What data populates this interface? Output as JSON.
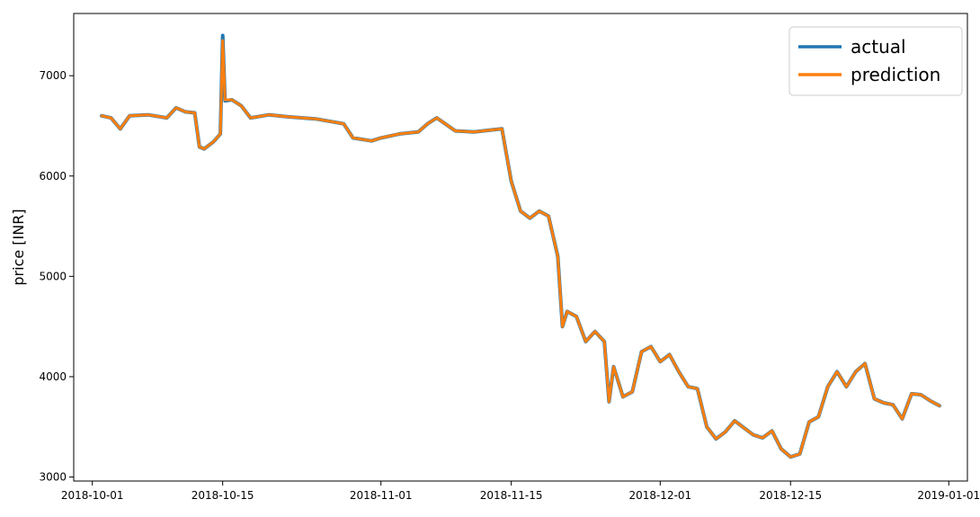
{
  "chart_data": {
    "type": "line",
    "title": "",
    "xlabel": "",
    "ylabel": "price [INR]",
    "xlim": [
      "2018-09-29",
      "2019-01-03"
    ],
    "ylim": [
      2960,
      7620
    ],
    "x_ticks": [
      "2018-10-01",
      "2018-10-15",
      "2018-11-01",
      "2018-11-15",
      "2018-12-01",
      "2018-12-15",
      "2019-01-01"
    ],
    "y_ticks": [
      3000,
      4000,
      5000,
      6000,
      7000
    ],
    "grid": false,
    "legend_position": "top-right",
    "series": [
      {
        "name": "actual",
        "color": "#1f77b4",
        "points": [
          [
            "2018-10-02",
            6600
          ],
          [
            "2018-10-03",
            6580
          ],
          [
            "2018-10-04",
            6470
          ],
          [
            "2018-10-05",
            6600
          ],
          [
            "2018-10-07",
            6610
          ],
          [
            "2018-10-09",
            6580
          ],
          [
            "2018-10-10",
            6680
          ],
          [
            "2018-10-11",
            6640
          ],
          [
            "2018-10-12",
            6630
          ],
          [
            "2018-10-12 12:00",
            6290
          ],
          [
            "2018-10-13",
            6270
          ],
          [
            "2018-10-14",
            6340
          ],
          [
            "2018-10-14 18:00",
            6420
          ],
          [
            "2018-10-15",
            7400
          ],
          [
            "2018-10-15 06:00",
            6750
          ],
          [
            "2018-10-16",
            6760
          ],
          [
            "2018-10-17",
            6700
          ],
          [
            "2018-10-18",
            6580
          ],
          [
            "2018-10-20",
            6610
          ],
          [
            "2018-10-22",
            6590
          ],
          [
            "2018-10-25",
            6570
          ],
          [
            "2018-10-28",
            6520
          ],
          [
            "2018-10-29",
            6380
          ],
          [
            "2018-10-31",
            6350
          ],
          [
            "2018-11-01",
            6380
          ],
          [
            "2018-11-03",
            6420
          ],
          [
            "2018-11-05",
            6440
          ],
          [
            "2018-11-06",
            6520
          ],
          [
            "2018-11-07",
            6580
          ],
          [
            "2018-11-09",
            6450
          ],
          [
            "2018-11-11",
            6440
          ],
          [
            "2018-11-13",
            6460
          ],
          [
            "2018-11-14",
            6470
          ],
          [
            "2018-11-15",
            5950
          ],
          [
            "2018-11-16",
            5650
          ],
          [
            "2018-11-17",
            5580
          ],
          [
            "2018-11-18",
            5650
          ],
          [
            "2018-11-19",
            5600
          ],
          [
            "2018-11-20",
            5200
          ],
          [
            "2018-11-20 12:00",
            4500
          ],
          [
            "2018-11-21",
            4650
          ],
          [
            "2018-11-22",
            4600
          ],
          [
            "2018-11-23",
            4350
          ],
          [
            "2018-11-24",
            4450
          ],
          [
            "2018-11-25",
            4350
          ],
          [
            "2018-11-25 12:00",
            3750
          ],
          [
            "2018-11-26",
            4100
          ],
          [
            "2018-11-27",
            3800
          ],
          [
            "2018-11-28",
            3850
          ],
          [
            "2018-11-29",
            4250
          ],
          [
            "2018-11-30",
            4300
          ],
          [
            "2018-12-01",
            4150
          ],
          [
            "2018-12-02",
            4220
          ],
          [
            "2018-12-03",
            4050
          ],
          [
            "2018-12-04",
            3900
          ],
          [
            "2018-12-05",
            3880
          ],
          [
            "2018-12-06",
            3500
          ],
          [
            "2018-12-07",
            3380
          ],
          [
            "2018-12-08",
            3450
          ],
          [
            "2018-12-09",
            3560
          ],
          [
            "2018-12-10",
            3490
          ],
          [
            "2018-12-11",
            3420
          ],
          [
            "2018-12-12",
            3390
          ],
          [
            "2018-12-13",
            3460
          ],
          [
            "2018-12-14",
            3280
          ],
          [
            "2018-12-15",
            3200
          ],
          [
            "2018-12-16",
            3230
          ],
          [
            "2018-12-17",
            3550
          ],
          [
            "2018-12-18",
            3600
          ],
          [
            "2018-12-19",
            3900
          ],
          [
            "2018-12-20",
            4050
          ],
          [
            "2018-12-21",
            3900
          ],
          [
            "2018-12-22",
            4050
          ],
          [
            "2018-12-23",
            4130
          ],
          [
            "2018-12-24",
            3780
          ],
          [
            "2018-12-25",
            3740
          ],
          [
            "2018-12-26",
            3720
          ],
          [
            "2018-12-27",
            3580
          ],
          [
            "2018-12-28",
            3830
          ],
          [
            "2018-12-29",
            3820
          ],
          [
            "2018-12-30",
            3760
          ],
          [
            "2018-12-31",
            3710
          ]
        ]
      },
      {
        "name": "prediction",
        "color": "#ff7f0e",
        "points": [
          [
            "2018-10-02",
            6600
          ],
          [
            "2018-10-03",
            6580
          ],
          [
            "2018-10-04",
            6470
          ],
          [
            "2018-10-05",
            6600
          ],
          [
            "2018-10-07",
            6610
          ],
          [
            "2018-10-09",
            6580
          ],
          [
            "2018-10-10",
            6680
          ],
          [
            "2018-10-11",
            6640
          ],
          [
            "2018-10-12",
            6630
          ],
          [
            "2018-10-12 12:00",
            6290
          ],
          [
            "2018-10-13",
            6270
          ],
          [
            "2018-10-14",
            6340
          ],
          [
            "2018-10-14 18:00",
            6420
          ],
          [
            "2018-10-15",
            7350
          ],
          [
            "2018-10-15 06:00",
            6760
          ],
          [
            "2018-10-16",
            6760
          ],
          [
            "2018-10-17",
            6700
          ],
          [
            "2018-10-18",
            6580
          ],
          [
            "2018-10-20",
            6610
          ],
          [
            "2018-10-22",
            6590
          ],
          [
            "2018-10-25",
            6570
          ],
          [
            "2018-10-28",
            6520
          ],
          [
            "2018-10-29",
            6380
          ],
          [
            "2018-10-31",
            6350
          ],
          [
            "2018-11-01",
            6380
          ],
          [
            "2018-11-03",
            6420
          ],
          [
            "2018-11-05",
            6440
          ],
          [
            "2018-11-06",
            6520
          ],
          [
            "2018-11-07",
            6580
          ],
          [
            "2018-11-09",
            6450
          ],
          [
            "2018-11-11",
            6440
          ],
          [
            "2018-11-13",
            6460
          ],
          [
            "2018-11-14",
            6470
          ],
          [
            "2018-11-15",
            5950
          ],
          [
            "2018-11-16",
            5650
          ],
          [
            "2018-11-17",
            5580
          ],
          [
            "2018-11-18",
            5650
          ],
          [
            "2018-11-19",
            5600
          ],
          [
            "2018-11-20",
            5200
          ],
          [
            "2018-11-20 12:00",
            4500
          ],
          [
            "2018-11-21",
            4650
          ],
          [
            "2018-11-22",
            4600
          ],
          [
            "2018-11-23",
            4350
          ],
          [
            "2018-11-24",
            4450
          ],
          [
            "2018-11-25",
            4350
          ],
          [
            "2018-11-25 12:00",
            3750
          ],
          [
            "2018-11-26",
            4100
          ],
          [
            "2018-11-27",
            3800
          ],
          [
            "2018-11-28",
            3850
          ],
          [
            "2018-11-29",
            4250
          ],
          [
            "2018-11-30",
            4300
          ],
          [
            "2018-12-01",
            4150
          ],
          [
            "2018-12-02",
            4220
          ],
          [
            "2018-12-03",
            4050
          ],
          [
            "2018-12-04",
            3900
          ],
          [
            "2018-12-05",
            3880
          ],
          [
            "2018-12-06",
            3500
          ],
          [
            "2018-12-07",
            3380
          ],
          [
            "2018-12-08",
            3450
          ],
          [
            "2018-12-09",
            3560
          ],
          [
            "2018-12-10",
            3490
          ],
          [
            "2018-12-11",
            3420
          ],
          [
            "2018-12-12",
            3390
          ],
          [
            "2018-12-13",
            3460
          ],
          [
            "2018-12-14",
            3280
          ],
          [
            "2018-12-15",
            3200
          ],
          [
            "2018-12-16",
            3230
          ],
          [
            "2018-12-17",
            3550
          ],
          [
            "2018-12-18",
            3600
          ],
          [
            "2018-12-19",
            3900
          ],
          [
            "2018-12-20",
            4050
          ],
          [
            "2018-12-21",
            3900
          ],
          [
            "2018-12-22",
            4050
          ],
          [
            "2018-12-23",
            4130
          ],
          [
            "2018-12-24",
            3780
          ],
          [
            "2018-12-25",
            3740
          ],
          [
            "2018-12-26",
            3720
          ],
          [
            "2018-12-27",
            3580
          ],
          [
            "2018-12-28",
            3830
          ],
          [
            "2018-12-29",
            3820
          ],
          [
            "2018-12-30",
            3760
          ],
          [
            "2018-12-31",
            3710
          ]
        ]
      }
    ]
  }
}
